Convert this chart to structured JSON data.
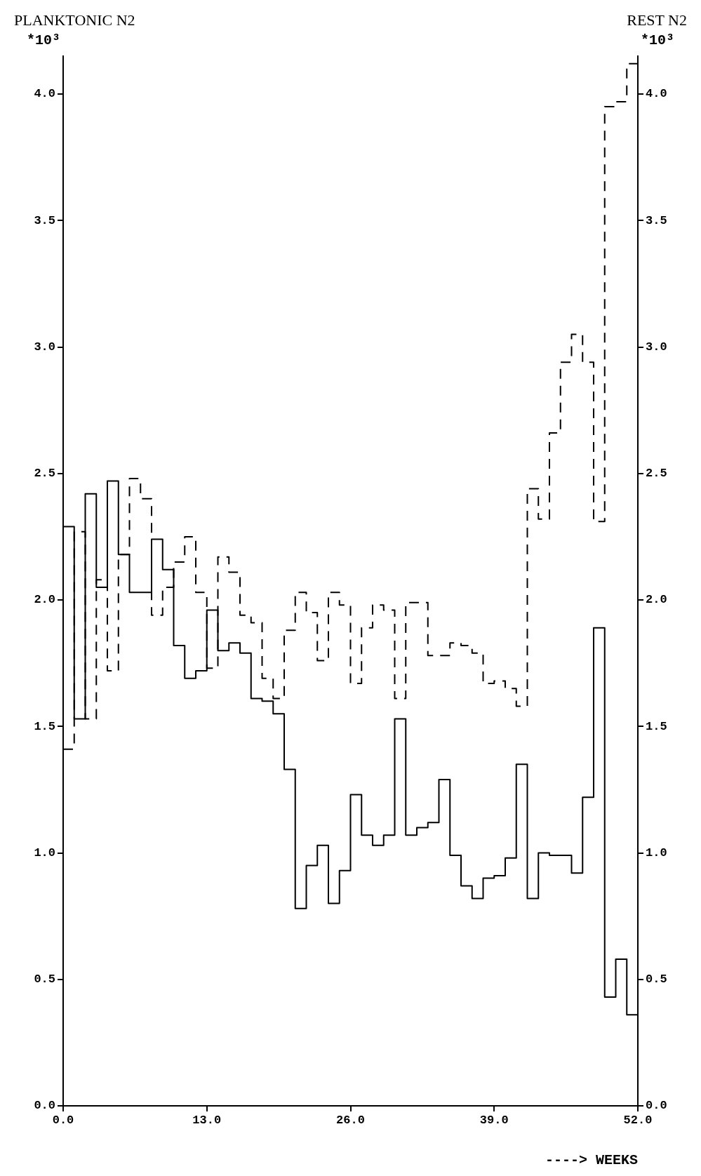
{
  "chart_data": {
    "type": "step",
    "xlabel": "----> WEEKS",
    "ylabel": "PLANKTONIC N2",
    "y2label": "REST N2",
    "annotations": [
      "*10³",
      "*10³"
    ],
    "x": [
      0,
      1,
      2,
      3,
      4,
      5,
      6,
      7,
      8,
      9,
      10,
      11,
      12,
      13,
      14,
      15,
      16,
      17,
      18,
      19,
      20,
      21,
      22,
      23,
      24,
      25,
      26,
      27,
      28,
      29,
      30,
      31,
      32,
      33,
      34,
      35,
      36,
      37,
      38,
      39,
      40,
      41,
      42,
      43,
      44,
      45,
      46,
      47,
      48,
      49,
      50,
      51,
      52
    ],
    "series": [
      {
        "color": "#000000",
        "line_style": "solid",
        "values": [
          2.29,
          1.53,
          2.42,
          2.05,
          2.47,
          2.18,
          2.03,
          2.03,
          2.24,
          2.12,
          1.82,
          1.69,
          1.72,
          1.96,
          1.8,
          1.83,
          1.79,
          1.61,
          1.6,
          1.55,
          1.33,
          0.78,
          0.95,
          1.03,
          0.8,
          0.93,
          1.23,
          1.07,
          1.03,
          1.07,
          1.53,
          1.07,
          1.1,
          1.12,
          1.29,
          0.99,
          0.87,
          0.82,
          0.9,
          0.91,
          0.98,
          1.35,
          0.82,
          1.0,
          0.99,
          0.99,
          0.92,
          1.22,
          1.89,
          0.43,
          0.58,
          0.36,
          0.36
        ]
      },
      {
        "color": "#000000",
        "line_style": "dashed",
        "values": [
          1.41,
          2.27,
          1.53,
          2.08,
          1.72,
          2.18,
          2.48,
          2.4,
          1.94,
          2.05,
          2.15,
          2.25,
          2.03,
          1.73,
          2.17,
          2.11,
          1.94,
          1.91,
          1.69,
          1.61,
          1.88,
          2.03,
          1.95,
          1.76,
          2.03,
          1.98,
          1.67,
          1.89,
          1.98,
          1.96,
          1.61,
          1.99,
          1.99,
          1.78,
          1.78,
          1.83,
          1.82,
          1.79,
          1.67,
          1.68,
          1.65,
          1.58,
          2.44,
          2.32,
          2.66,
          2.94,
          3.05,
          2.94,
          2.31,
          3.95,
          3.97,
          4.12,
          4.12
        ]
      }
    ],
    "xlim": [
      0,
      52
    ],
    "xticks": [
      {
        "value": 0,
        "label": "0.0"
      },
      {
        "value": 13,
        "label": "13.0"
      },
      {
        "value": 26,
        "label": "26.0"
      },
      {
        "value": 39,
        "label": "39.0"
      },
      {
        "value": 52,
        "label": "52.0"
      }
    ],
    "ylim": [
      0,
      4.15
    ],
    "yticks": [
      {
        "value": 0,
        "label": "0.0"
      },
      {
        "value": 0.5,
        "label": "0.5"
      },
      {
        "value": 1,
        "label": "1.0"
      },
      {
        "value": 1.5,
        "label": "1.5"
      },
      {
        "value": 2,
        "label": "2.0"
      },
      {
        "value": 2.5,
        "label": "2.5"
      },
      {
        "value": 3,
        "label": "3.0"
      },
      {
        "value": 3.5,
        "label": "3.5"
      },
      {
        "value": 4,
        "label": "4.0"
      }
    ],
    "y2lim": [
      0,
      4.15
    ],
    "y2ticks": [
      {
        "value": 0,
        "label": "0.0"
      },
      {
        "value": 0.5,
        "label": "0.5"
      },
      {
        "value": 1,
        "label": "1.0"
      },
      {
        "value": 1.5,
        "label": "1.5"
      },
      {
        "value": 2,
        "label": "2.0"
      },
      {
        "value": 2.5,
        "label": "2.5"
      },
      {
        "value": 3,
        "label": "3.0"
      },
      {
        "value": 3.5,
        "label": "3.5"
      },
      {
        "value": 4,
        "label": "4.0"
      }
    ],
    "grid": false,
    "marker": "none"
  }
}
